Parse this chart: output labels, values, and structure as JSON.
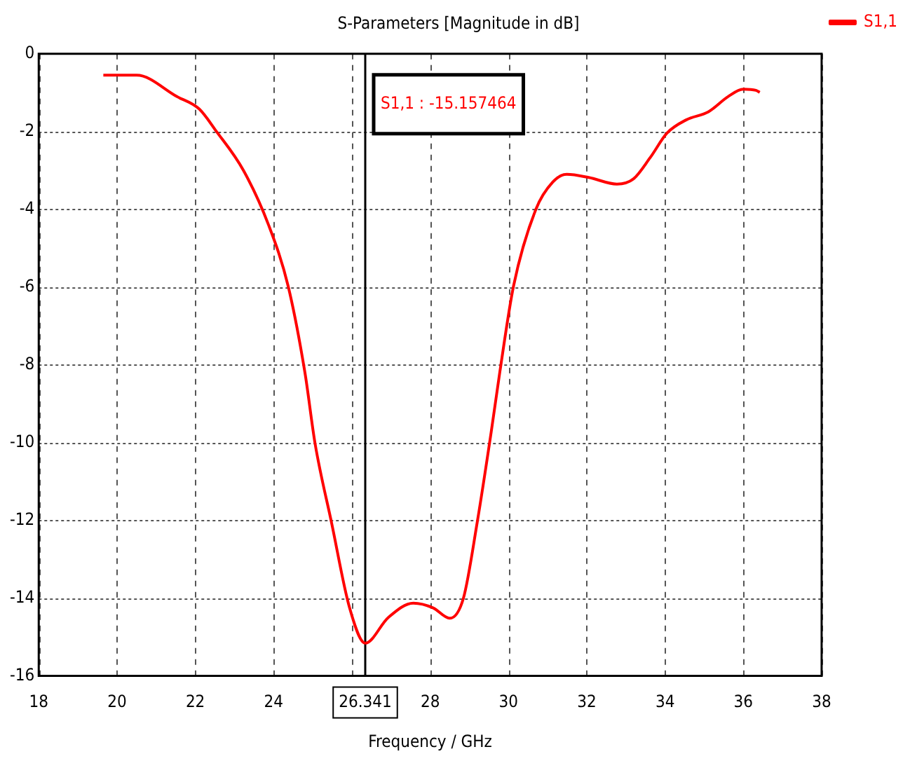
{
  "chart_data": {
    "type": "line",
    "title": "S-Parameters [Magnitude in dB]",
    "xlabel": "Frequency / GHz",
    "series": [
      {
        "name": "S1,1",
        "color": "#ff0000",
        "x": [
          19.65,
          20.5,
          21.53,
          22.1,
          22.52,
          23.23,
          23.87,
          24.37,
          24.8,
          25.06,
          25.48,
          25.94,
          26.341,
          26.93,
          27.57,
          28.07,
          28.5,
          28.85,
          29.2,
          29.56,
          29.78,
          30.13,
          30.7,
          31.13,
          31.49,
          32.05,
          32.77,
          33.19,
          33.62,
          34.05,
          34.54,
          35.11,
          35.61,
          36.0,
          36.32,
          36.42
        ],
        "values": [
          -0.55,
          -0.55,
          -1.1,
          -1.42,
          -1.97,
          -3.0,
          -4.4,
          -5.97,
          -8.2,
          -10.03,
          -12.06,
          -14.25,
          -15.16,
          -14.5,
          -14.13,
          -14.25,
          -14.52,
          -14.0,
          -12.06,
          -9.72,
          -8.18,
          -5.97,
          -4.0,
          -3.3,
          -3.1,
          -3.18,
          -3.35,
          -3.22,
          -2.67,
          -2.04,
          -1.7,
          -1.49,
          -1.1,
          -0.91,
          -0.94,
          -0.99
        ]
      }
    ],
    "xlim": [
      18,
      38
    ],
    "xticks": [
      18,
      20,
      22,
      24,
      {
        "value": 26,
        "label": null
      },
      28,
      30,
      32,
      34,
      36,
      38
    ],
    "ylim": [
      -16,
      0
    ],
    "yticks": [
      -16,
      -14,
      -12,
      -10,
      -8,
      -6,
      -4,
      -2,
      0
    ],
    "ref_lines": [
      {
        "axis": "x",
        "value": 26.341,
        "label": "26.341",
        "color": "#000000"
      }
    ],
    "annotations": [
      "S1,1 : -15.157464"
    ],
    "grid": true,
    "legend": "top right",
    "marker": "none",
    "line_style": "solid"
  }
}
